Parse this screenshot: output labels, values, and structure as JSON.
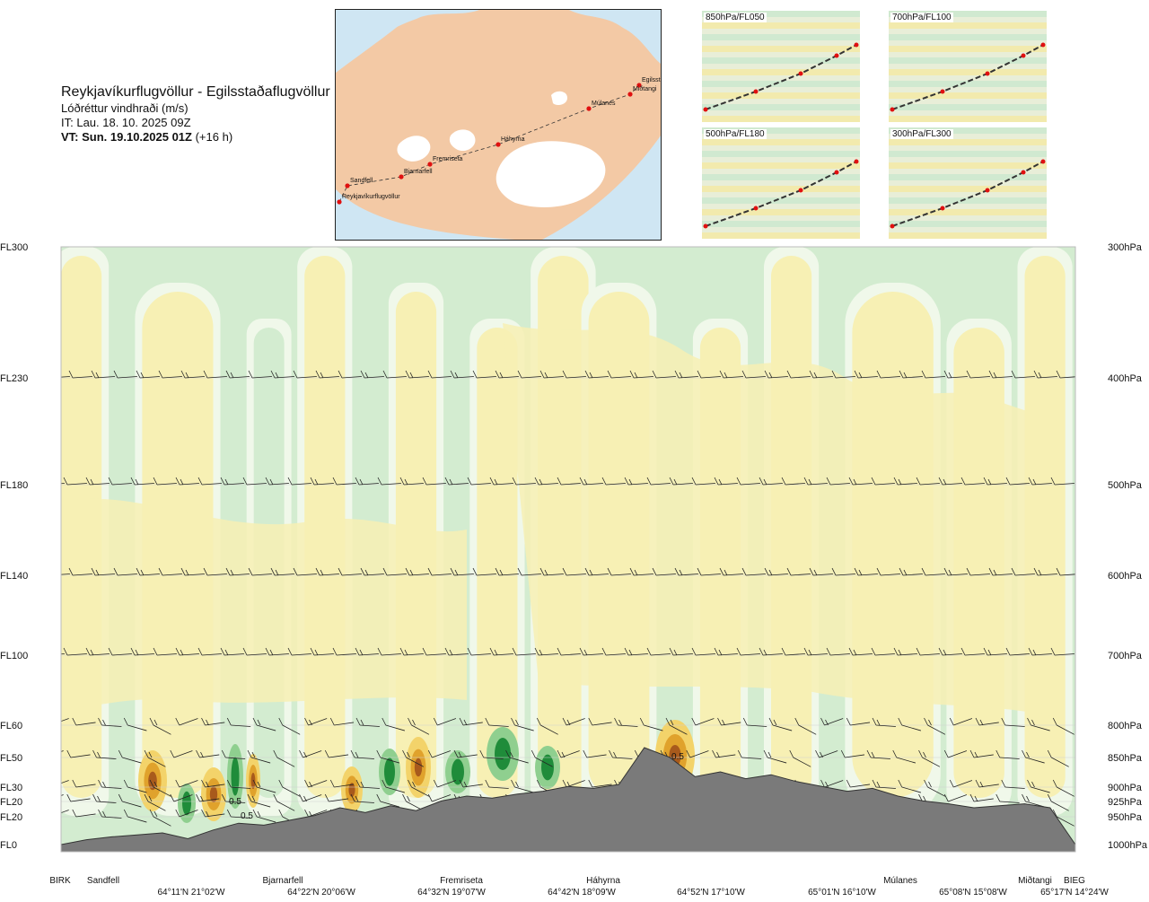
{
  "header": {
    "title": "Reykjavíkurflugvöllur - Egilsstaðaflugvöllur",
    "subtitle": "Lóðréttur vindhraði (m/s)",
    "issue_time": "IT: Lau. 18. 10. 2025 09Z",
    "valid_time": "VT: Sun. 19.10.2025 01Z",
    "lead": "(+16 h)"
  },
  "map": {
    "waypoints": [
      "Reykjavíkurflugvöllur",
      "Sandfell",
      "Bjarnarfell",
      "Fremriseta",
      "Háhyrna",
      "Múlanes",
      "Miðtangi",
      "Egilsst"
    ]
  },
  "thumbnails": [
    {
      "label": "850hPa/FL050"
    },
    {
      "label": "700hPa/FL100"
    },
    {
      "label": "500hPa/FL180"
    },
    {
      "label": "300hPa/FL300"
    }
  ],
  "colors": {
    "positive_light": "#f7f0b4",
    "positive_mid": "#f3d36a",
    "positive_strong": "#e0a22c",
    "positive_max": "#a85a1c",
    "negative_light": "#f0f8ea",
    "negative_mid": "#d3ecd0",
    "negative_strong": "#8fcf8f",
    "negative_max": "#1f8c3a",
    "terrain": "#7a7a7a",
    "track": "#e01010"
  },
  "chart_data": {
    "type": "cross-section",
    "title": "Lóðréttur vindhraði (m/s)",
    "levels": [
      {
        "fl": "FL300",
        "hpa": "300hPa"
      },
      {
        "fl": "FL230",
        "hpa": "400hPa"
      },
      {
        "fl": "FL180",
        "hpa": "500hPa"
      },
      {
        "fl": "FL140",
        "hpa": "600hPa"
      },
      {
        "fl": "FL100",
        "hpa": "700hPa"
      },
      {
        "fl": "FL60",
        "hpa": "800hPa"
      },
      {
        "fl": "FL50",
        "hpa": "850hPa"
      },
      {
        "fl": "FL30",
        "hpa": "900hPa"
      },
      {
        "fl": "FL20",
        "hpa": "925hPa"
      },
      {
        "fl": "FL20",
        "hpa": "950hPa"
      },
      {
        "fl": "FL0",
        "hpa": "1000hPa"
      }
    ],
    "waypoints": [
      "BIRK",
      "Sandfell",
      "Bjarnarfell",
      "Fremriseta",
      "Háhyrna",
      "Miðtangi",
      "BIEG",
      "Múlanes"
    ],
    "coordinates": [
      "64°11'N 21°02'W",
      "64°22'N 20°06'W",
      "64°32'N 19°07'W",
      "64°42'N 18°09'W",
      "64°52'N 17°10'W",
      "65°01'N 16°10'W",
      "65°08'N 15°08'W",
      "65°17'N 14°24'W"
    ],
    "contour_labels": [
      "0.5",
      "0.5",
      "0.5"
    ],
    "terrain_profile": [
      0,
      0.05,
      0.08,
      0.1,
      0.12,
      0.06,
      0.15,
      0.22,
      0.2,
      0.25,
      0.3,
      0.38,
      0.33,
      0.4,
      0.35,
      0.45,
      0.5,
      0.48,
      0.52,
      0.55,
      0.6,
      0.58,
      0.62,
      1.0,
      0.9,
      0.7,
      0.75,
      0.68,
      0.72,
      0.65,
      0.6,
      0.55,
      0.58,
      0.5,
      0.45,
      0.42,
      0.38,
      0.4,
      0.42,
      0.38,
      0.0
    ]
  }
}
